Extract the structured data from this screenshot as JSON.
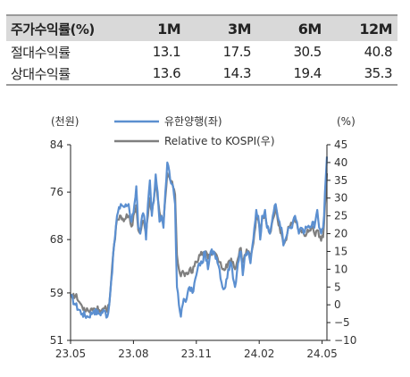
{
  "table": {
    "header": [
      "주가수익률(%)",
      "1M",
      "3M",
      "6M",
      "12M"
    ],
    "rows": [
      {
        "label": "절대수익률",
        "values": [
          "13.1",
          "17.5",
          "30.5",
          "40.8"
        ]
      },
      {
        "label": "상대수익률",
        "values": [
          "13.6",
          "14.3",
          "19.4",
          "35.3"
        ]
      }
    ]
  },
  "chart_data": {
    "type": "line",
    "left_axis_unit": "(천원)",
    "right_axis_unit": "(%)",
    "left_ticks": [
      "84",
      "76",
      "68",
      "59",
      "51"
    ],
    "left_ylim": [
      51,
      84
    ],
    "right_ticks": [
      "45",
      "40",
      "35",
      "30",
      "25",
      "20",
      "15",
      "10",
      "5",
      "0",
      "−5",
      "−10"
    ],
    "right_ylim": [
      -10,
      45
    ],
    "x_ticks": [
      "23.05",
      "23.08",
      "23.11",
      "24.02",
      "24.05"
    ],
    "x_tick_index": [
      0,
      65,
      130,
      195,
      260
    ],
    "n_points": 266,
    "legend_position": "top",
    "colors": {
      "price": "#5b8fd0",
      "relative": "#7f7f7f"
    },
    "series": [
      {
        "name": "유한양행(좌)",
        "axis": "left",
        "anchors": [
          [
            0,
            58.5
          ],
          [
            5,
            57
          ],
          [
            12,
            55.5
          ],
          [
            18,
            55
          ],
          [
            24,
            56
          ],
          [
            30,
            55.5
          ],
          [
            35,
            56
          ],
          [
            38,
            55
          ],
          [
            40,
            57
          ],
          [
            42,
            61
          ],
          [
            45,
            67
          ],
          [
            48,
            72
          ],
          [
            52,
            74
          ],
          [
            56,
            73.5
          ],
          [
            60,
            74
          ],
          [
            63,
            71
          ],
          [
            66,
            74
          ],
          [
            68,
            77
          ],
          [
            70,
            70
          ],
          [
            72,
            69
          ],
          [
            74,
            72
          ],
          [
            76,
            72
          ],
          [
            78,
            68
          ],
          [
            80,
            74
          ],
          [
            82,
            78
          ],
          [
            84,
            72
          ],
          [
            86,
            74.5
          ],
          [
            88,
            79
          ],
          [
            90,
            76
          ],
          [
            92,
            71
          ],
          [
            94,
            72
          ],
          [
            96,
            70
          ],
          [
            98,
            76
          ],
          [
            100,
            81
          ],
          [
            103,
            78
          ],
          [
            106,
            77
          ],
          [
            108,
            74
          ],
          [
            110,
            60
          ],
          [
            112,
            57
          ],
          [
            114,
            55
          ],
          [
            117,
            58
          ],
          [
            120,
            58
          ],
          [
            123,
            60
          ],
          [
            126,
            59
          ],
          [
            130,
            62
          ],
          [
            133,
            64
          ],
          [
            136,
            64
          ],
          [
            139,
            66
          ],
          [
            142,
            63
          ],
          [
            145,
            66
          ],
          [
            148,
            66
          ],
          [
            151,
            65
          ],
          [
            154,
            63
          ],
          [
            157,
            60
          ],
          [
            160,
            60
          ],
          [
            163,
            63
          ],
          [
            166,
            64
          ],
          [
            170,
            60
          ],
          [
            173,
            64
          ],
          [
            176,
            66
          ],
          [
            178,
            62
          ],
          [
            180,
            65
          ],
          [
            183,
            66
          ],
          [
            186,
            64
          ],
          [
            188,
            67
          ],
          [
            190,
            70
          ],
          [
            192,
            73
          ],
          [
            194,
            72
          ],
          [
            196,
            68
          ],
          [
            198,
            72
          ],
          [
            201,
            73
          ],
          [
            203,
            70
          ],
          [
            206,
            69
          ],
          [
            209,
            72
          ],
          [
            212,
            74
          ],
          [
            214,
            72
          ],
          [
            216,
            71
          ],
          [
            218,
            70
          ],
          [
            220,
            67
          ],
          [
            222,
            68
          ],
          [
            224,
            69
          ],
          [
            226,
            70
          ],
          [
            229,
            70
          ],
          [
            232,
            72
          ],
          [
            234,
            71
          ],
          [
            236,
            69
          ],
          [
            238,
            70
          ],
          [
            241,
            69
          ],
          [
            244,
            70
          ],
          [
            247,
            70
          ],
          [
            250,
            71
          ],
          [
            252,
            70
          ],
          [
            255,
            73
          ],
          [
            257,
            70
          ],
          [
            259,
            69
          ],
          [
            261,
            70
          ],
          [
            262,
            72
          ],
          [
            263,
            76
          ],
          [
            265,
            82
          ]
        ]
      },
      {
        "name": "Relative to KOSPI(우)",
        "axis": "right",
        "anchors": [
          [
            0,
            3
          ],
          [
            5,
            2.5
          ],
          [
            12,
            -0.5
          ],
          [
            18,
            -1.5
          ],
          [
            24,
            -1
          ],
          [
            30,
            -1.5
          ],
          [
            35,
            -1
          ],
          [
            38,
            -2
          ],
          [
            40,
            0
          ],
          [
            42,
            7
          ],
          [
            45,
            17
          ],
          [
            48,
            24
          ],
          [
            52,
            25
          ],
          [
            56,
            24
          ],
          [
            60,
            25
          ],
          [
            63,
            22
          ],
          [
            66,
            26
          ],
          [
            68,
            28
          ],
          [
            70,
            21
          ],
          [
            72,
            20
          ],
          [
            74,
            23
          ],
          [
            76,
            23
          ],
          [
            78,
            20
          ],
          [
            80,
            25
          ],
          [
            82,
            30
          ],
          [
            84,
            26
          ],
          [
            86,
            29
          ],
          [
            88,
            34
          ],
          [
            90,
            30
          ],
          [
            92,
            26
          ],
          [
            94,
            25
          ],
          [
            96,
            23
          ],
          [
            98,
            30
          ],
          [
            100,
            37
          ],
          [
            103,
            35
          ],
          [
            106,
            33
          ],
          [
            108,
            31
          ],
          [
            110,
            14
          ],
          [
            112,
            10
          ],
          [
            114,
            8
          ],
          [
            117,
            9
          ],
          [
            120,
            9
          ],
          [
            123,
            10
          ],
          [
            126,
            9
          ],
          [
            130,
            12
          ],
          [
            133,
            14
          ],
          [
            136,
            14
          ],
          [
            139,
            15
          ],
          [
            142,
            13
          ],
          [
            145,
            15
          ],
          [
            148,
            15
          ],
          [
            151,
            14
          ],
          [
            154,
            12
          ],
          [
            157,
            10
          ],
          [
            160,
            10
          ],
          [
            163,
            12
          ],
          [
            166,
            13
          ],
          [
            170,
            10
          ],
          [
            173,
            13
          ],
          [
            176,
            16
          ],
          [
            178,
            12
          ],
          [
            180,
            14
          ],
          [
            183,
            15
          ],
          [
            186,
            13
          ],
          [
            188,
            16
          ],
          [
            190,
            20
          ],
          [
            192,
            25
          ],
          [
            194,
            24
          ],
          [
            196,
            20
          ],
          [
            198,
            24
          ],
          [
            201,
            26
          ],
          [
            203,
            22
          ],
          [
            206,
            20
          ],
          [
            209,
            24
          ],
          [
            212,
            27
          ],
          [
            214,
            24
          ],
          [
            216,
            22
          ],
          [
            218,
            20
          ],
          [
            220,
            17
          ],
          [
            222,
            18
          ],
          [
            224,
            20
          ],
          [
            226,
            22
          ],
          [
            229,
            23
          ],
          [
            232,
            24
          ],
          [
            234,
            23
          ],
          [
            236,
            21
          ],
          [
            238,
            21
          ],
          [
            241,
            20
          ],
          [
            244,
            20
          ],
          [
            247,
            21
          ],
          [
            250,
            22
          ],
          [
            252,
            20
          ],
          [
            255,
            21
          ],
          [
            257,
            19
          ],
          [
            259,
            18
          ],
          [
            261,
            19
          ],
          [
            262,
            23
          ],
          [
            263,
            28
          ],
          [
            265,
            37
          ]
        ]
      }
    ]
  }
}
